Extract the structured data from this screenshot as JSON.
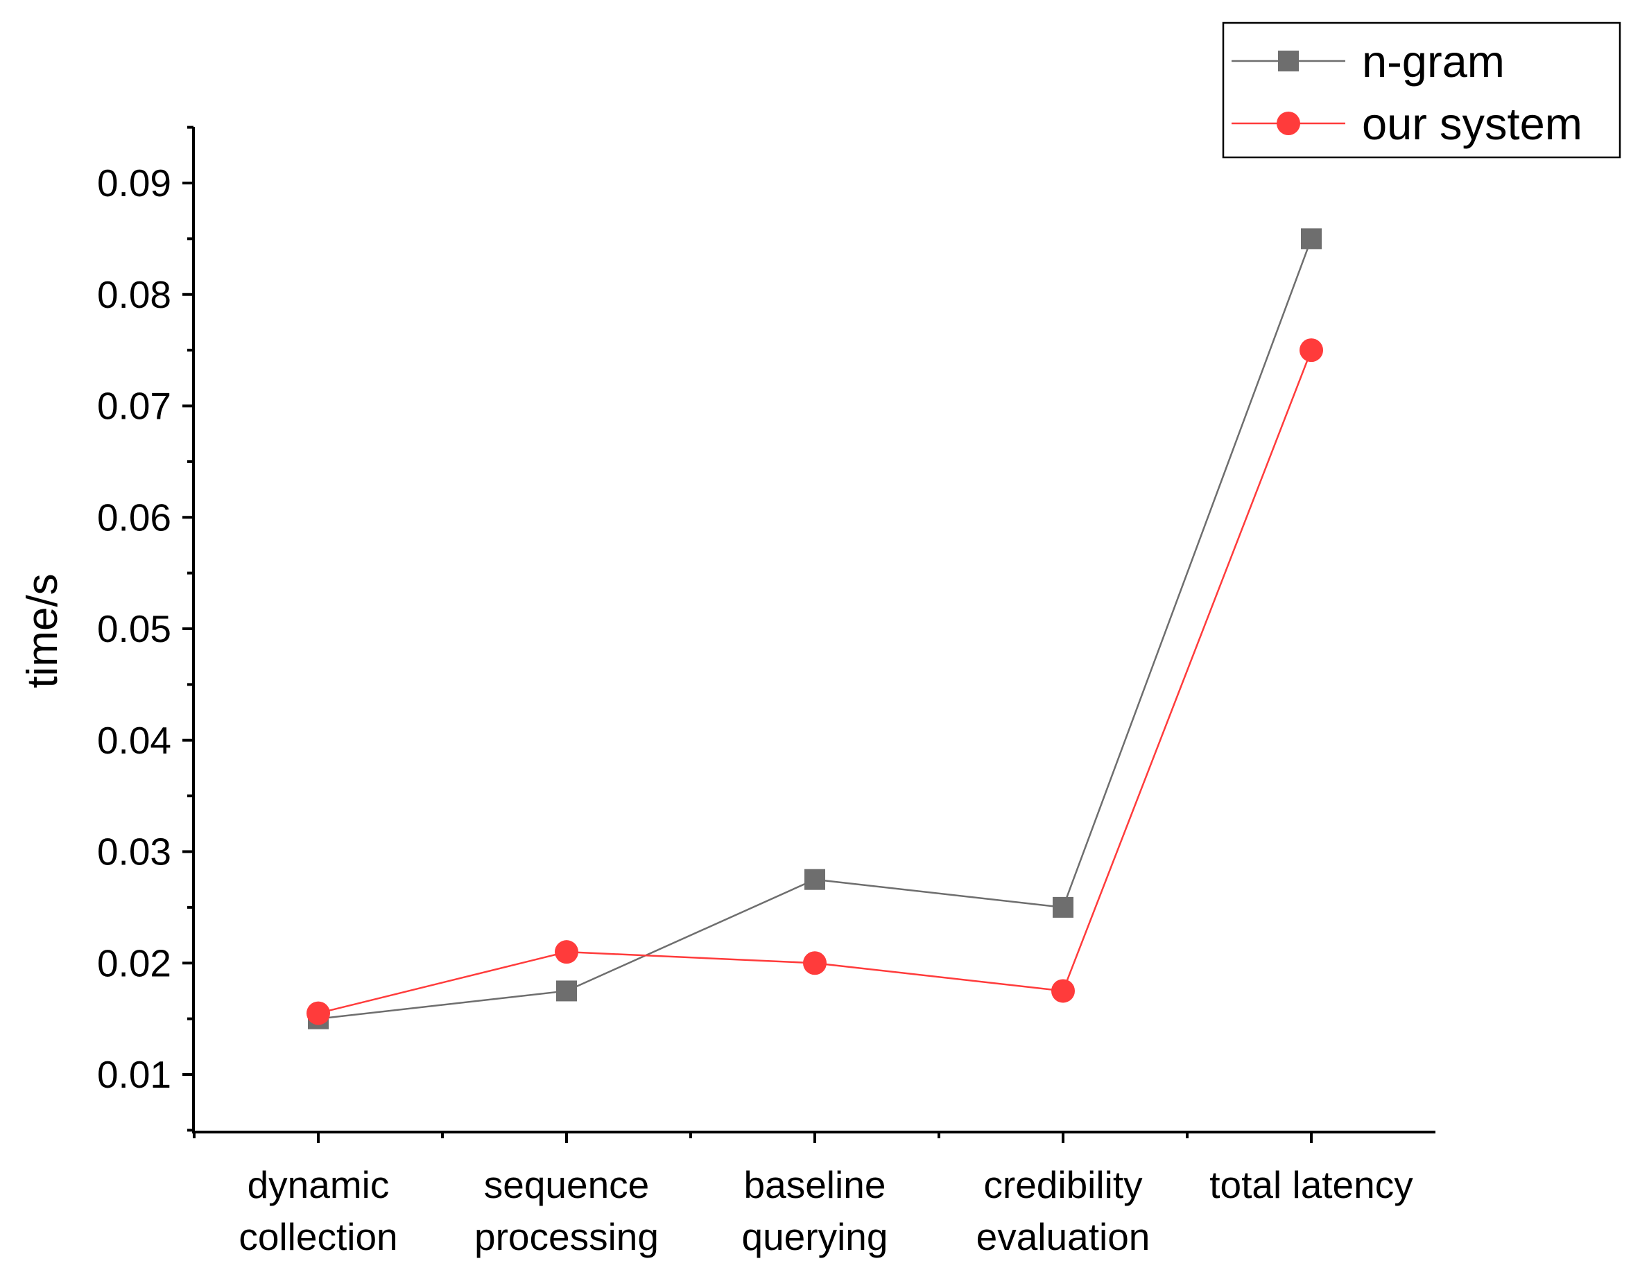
{
  "chart_data": {
    "type": "line",
    "title": "",
    "xlabel": "",
    "ylabel": "time/s",
    "categories": [
      [
        "dynamic",
        "collection"
      ],
      [
        "sequence",
        "processing"
      ],
      [
        "baseline",
        "querying"
      ],
      [
        "credibility",
        "evaluation"
      ],
      [
        "total latency"
      ]
    ],
    "ylim": [
      0.005,
      0.095
    ],
    "yticks": [
      0.01,
      0.02,
      0.03,
      0.04,
      0.05,
      0.06,
      0.07,
      0.08,
      0.09
    ],
    "ytick_labels": [
      "0.01",
      "0.02",
      "0.03",
      "0.04",
      "0.05",
      "0.06",
      "0.07",
      "0.08",
      "0.09"
    ],
    "grid": false,
    "legend_position": "top-right",
    "series": [
      {
        "name": "n-gram",
        "marker": "square",
        "color": "#6e6e6e",
        "values": [
          0.015,
          0.0175,
          0.0275,
          0.025,
          0.085
        ]
      },
      {
        "name": "our system",
        "marker": "circle",
        "color": "#ff3b3b",
        "values": [
          0.0155,
          0.021,
          0.02,
          0.0175,
          0.075
        ]
      }
    ]
  }
}
